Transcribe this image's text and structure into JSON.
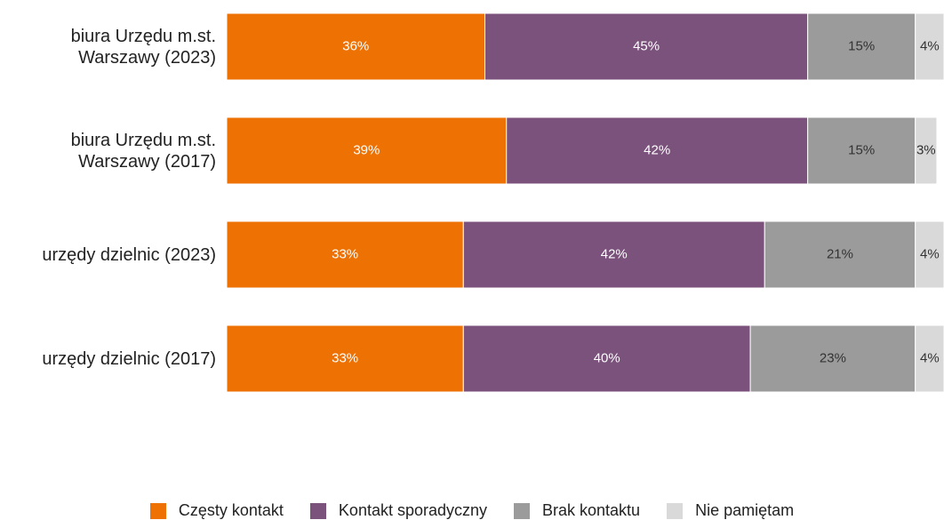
{
  "chart_data": {
    "type": "stacked-bar-horizontal",
    "categories": [
      "biura Urzędu m.st. Warszawy (2023)",
      "biura Urzędu m.st. Warszawy (2017)",
      "urzędy dzielnic (2023)",
      "urzędy dzielnic (2017)"
    ],
    "xlim": [
      0,
      100
    ],
    "legend": "bottom",
    "series": [
      {
        "name": "Częsty kontakt",
        "color": "#ee7203",
        "values": [
          36,
          39,
          33,
          33
        ],
        "value_labels": [
          "36%",
          "39%",
          "33%",
          "33%"
        ]
      },
      {
        "name": "Kontakt sporadyczny",
        "color": "#7b527c",
        "values": [
          45,
          42,
          42,
          40
        ],
        "value_labels": [
          "45%",
          "42%",
          "42%",
          "40%"
        ]
      },
      {
        "name": "Brak kontaktu",
        "color": "#9b9b9b",
        "values": [
          15,
          15,
          21,
          23
        ],
        "value_labels": [
          "15%",
          "15%",
          "21%",
          "23%"
        ]
      },
      {
        "name": "Nie pamiętam",
        "color": "#d9d9d9",
        "values": [
          4,
          3,
          4,
          4
        ],
        "value_labels": [
          "4%",
          "3%",
          "4%",
          "4%"
        ]
      }
    ]
  }
}
